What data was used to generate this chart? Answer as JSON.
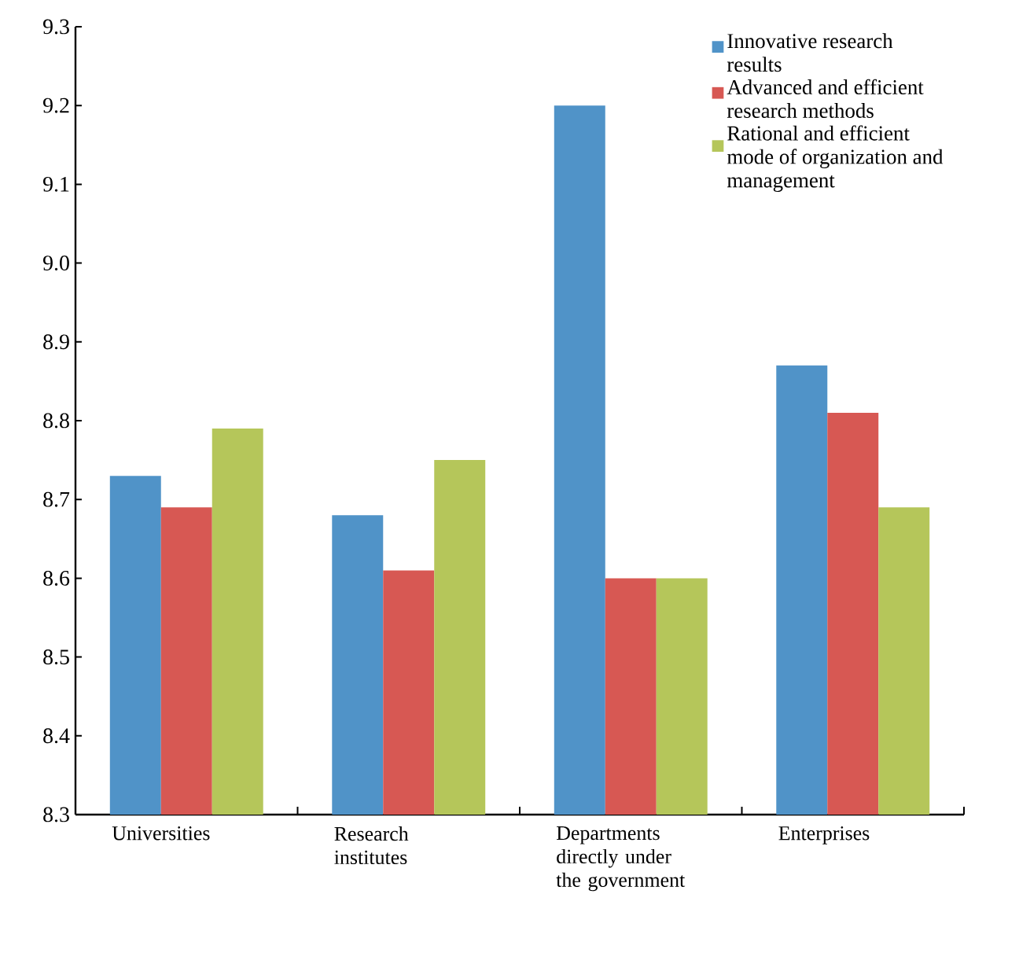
{
  "chart_data": {
    "type": "bar",
    "categories": [
      "Universities",
      "Research institutes",
      "Departments directly under the government",
      "Enterprises"
    ],
    "series": [
      {
        "name": "Innovative research results",
        "color": "#5093c8",
        "values": [
          8.73,
          8.68,
          9.2,
          8.87
        ]
      },
      {
        "name": "Advanced and efficient research methods",
        "color": "#d75853",
        "values": [
          8.69,
          8.61,
          8.6,
          8.81
        ]
      },
      {
        "name": "Rational and efficient mode of organization and management",
        "color": "#b5c65a",
        "values": [
          8.79,
          8.75,
          8.6,
          8.69
        ]
      }
    ],
    "ylim": [
      8.3,
      9.3
    ],
    "yticks": [
      8.3,
      8.4,
      8.5,
      8.6,
      8.7,
      8.8,
      8.9,
      {
        "value": 9.0,
        "label": "9.0"
      },
      9.1,
      9.2,
      9.3
    ],
    "legend": "top right"
  }
}
